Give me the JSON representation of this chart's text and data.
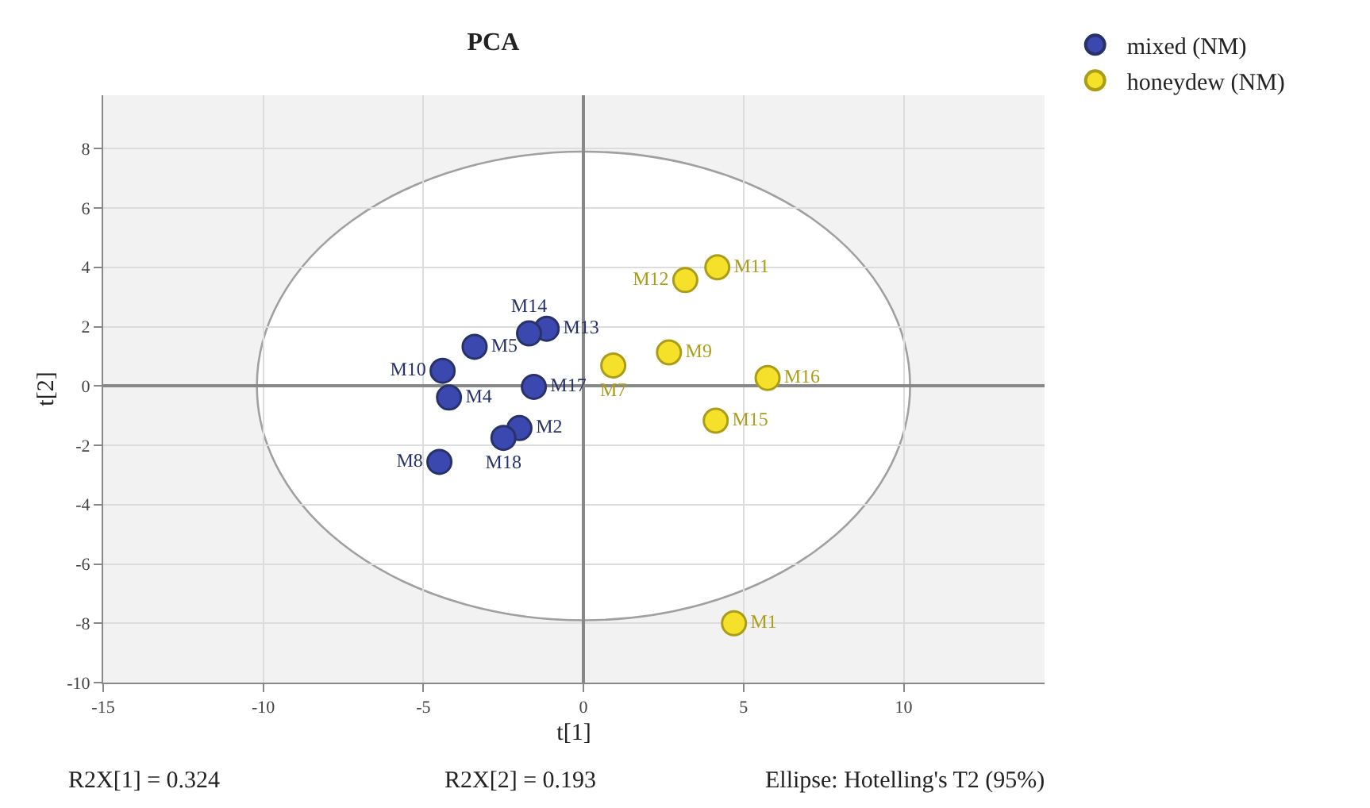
{
  "chart_data": {
    "type": "scatter",
    "title": "PCA",
    "xlabel": "t[1]",
    "ylabel": "t[2]",
    "xlim": [
      -15,
      14.4
    ],
    "ylim": [
      -10,
      9.8
    ],
    "xticks": [
      -15,
      -10,
      -5,
      0,
      5,
      10
    ],
    "yticks": [
      -10,
      -8,
      -6,
      -4,
      -2,
      0,
      2,
      4,
      6,
      8
    ],
    "grid": true,
    "legend": "top right",
    "marker": "circle",
    "series": [
      {
        "name": "mixed (NM)",
        "color": "#3a48b0",
        "x": [
          -1.15,
          -1.7,
          -3.4,
          -4.4,
          -4.2,
          -1.55,
          -2.0,
          -2.5,
          -4.5
        ],
        "values": [
          1.93,
          1.77,
          1.32,
          0.51,
          -0.39,
          -0.03,
          -1.42,
          -1.75,
          -2.56
        ],
        "value_labels": [
          "M13",
          "M14",
          "M5",
          "M10",
          "M4",
          "M17",
          "M2",
          "M18",
          "M8"
        ]
      },
      {
        "name": "honeydew (NM)",
        "color": "#f5e12a",
        "x": [
          4.18,
          3.18,
          2.67,
          0.93,
          5.75,
          4.13,
          4.7
        ],
        "values": [
          4.0,
          3.57,
          1.13,
          0.69,
          0.27,
          -1.17,
          -8.0
        ],
        "value_labels": [
          "M11",
          "M12",
          "M9",
          "M7",
          "M16",
          "M15",
          "M1"
        ]
      }
    ],
    "annotations": [
      "R2X[1] = 0.324",
      "R2X[2] = 0.193",
      "Ellipse: Hotelling's T2 (95%)"
    ]
  }
}
